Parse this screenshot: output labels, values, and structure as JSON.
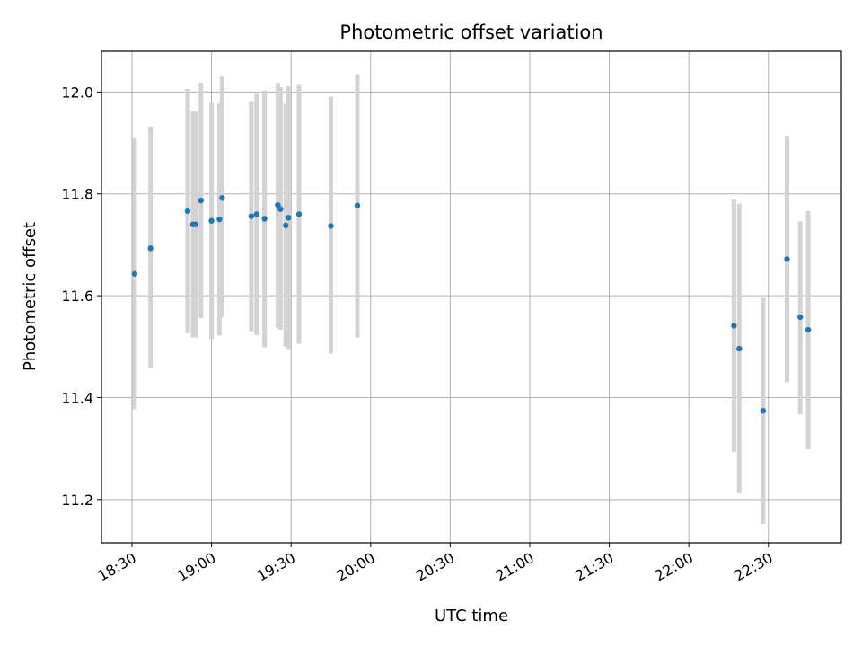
{
  "chart_data": {
    "type": "scatter",
    "title": "Photometric offset variation",
    "xlabel": "UTC time",
    "ylabel": "Photometric offset",
    "x_tick_labels": [
      "18:30",
      "19:00",
      "19:30",
      "20:00",
      "20:30",
      "21:00",
      "21:30",
      "22:00",
      "22:30"
    ],
    "x_tick_minutes": [
      1110,
      1140,
      1170,
      1200,
      1230,
      1260,
      1290,
      1320,
      1350
    ],
    "xlim_minutes": [
      1098.5,
      1377.5
    ],
    "y_ticks": [
      "11.2",
      "11.4",
      "11.6",
      "11.8",
      "12.0"
    ],
    "ylim": [
      11.115,
      12.08
    ],
    "grid": true,
    "marker_color": "#1f77b4",
    "errorbar_color": "#d3d3d3",
    "points": [
      {
        "x": "18:31",
        "y": 11.643,
        "ylo": 11.377,
        "yhi": 11.909
      },
      {
        "x": "18:37",
        "y": 11.693,
        "ylo": 11.458,
        "yhi": 11.932
      },
      {
        "x": "18:51",
        "y": 11.766,
        "ylo": 11.526,
        "yhi": 12.006
      },
      {
        "x": "18:53",
        "y": 11.74,
        "ylo": 11.518,
        "yhi": 11.962
      },
      {
        "x": "18:54",
        "y": 11.74,
        "ylo": 11.518,
        "yhi": 11.962
      },
      {
        "x": "18:56",
        "y": 11.787,
        "ylo": 11.556,
        "yhi": 12.018
      },
      {
        "x": "19:00",
        "y": 11.747,
        "ylo": 11.515,
        "yhi": 11.979
      },
      {
        "x": "19:03",
        "y": 11.75,
        "ylo": 11.522,
        "yhi": 11.977
      },
      {
        "x": "19:04",
        "y": 11.792,
        "ylo": 11.558,
        "yhi": 12.03
      },
      {
        "x": "19:15",
        "y": 11.756,
        "ylo": 11.53,
        "yhi": 11.982
      },
      {
        "x": "19:17",
        "y": 11.76,
        "ylo": 11.523,
        "yhi": 11.996
      },
      {
        "x": "19:20",
        "y": 11.751,
        "ylo": 11.499,
        "yhi": 12.003
      },
      {
        "x": "19:25",
        "y": 11.778,
        "ylo": 11.537,
        "yhi": 12.018
      },
      {
        "x": "19:26",
        "y": 11.77,
        "ylo": 11.533,
        "yhi": 12.009
      },
      {
        "x": "19:28",
        "y": 11.738,
        "ylo": 11.5,
        "yhi": 11.977
      },
      {
        "x": "19:29",
        "y": 11.753,
        "ylo": 11.495,
        "yhi": 12.011
      },
      {
        "x": "19:33",
        "y": 11.76,
        "ylo": 11.506,
        "yhi": 12.014
      },
      {
        "x": "19:45",
        "y": 11.737,
        "ylo": 11.486,
        "yhi": 11.991
      },
      {
        "x": "19:55",
        "y": 11.777,
        "ylo": 11.518,
        "yhi": 12.035
      },
      {
        "x": "22:17",
        "y": 11.541,
        "ylo": 11.293,
        "yhi": 11.789
      },
      {
        "x": "22:19",
        "y": 11.496,
        "ylo": 11.212,
        "yhi": 11.781
      },
      {
        "x": "22:28",
        "y": 11.374,
        "ylo": 11.152,
        "yhi": 11.596
      },
      {
        "x": "22:37",
        "y": 11.672,
        "ylo": 11.43,
        "yhi": 11.914
      },
      {
        "x": "22:42",
        "y": 11.558,
        "ylo": 11.367,
        "yhi": 11.746
      },
      {
        "x": "22:45",
        "y": 11.533,
        "ylo": 11.298,
        "yhi": 11.766
      }
    ]
  }
}
